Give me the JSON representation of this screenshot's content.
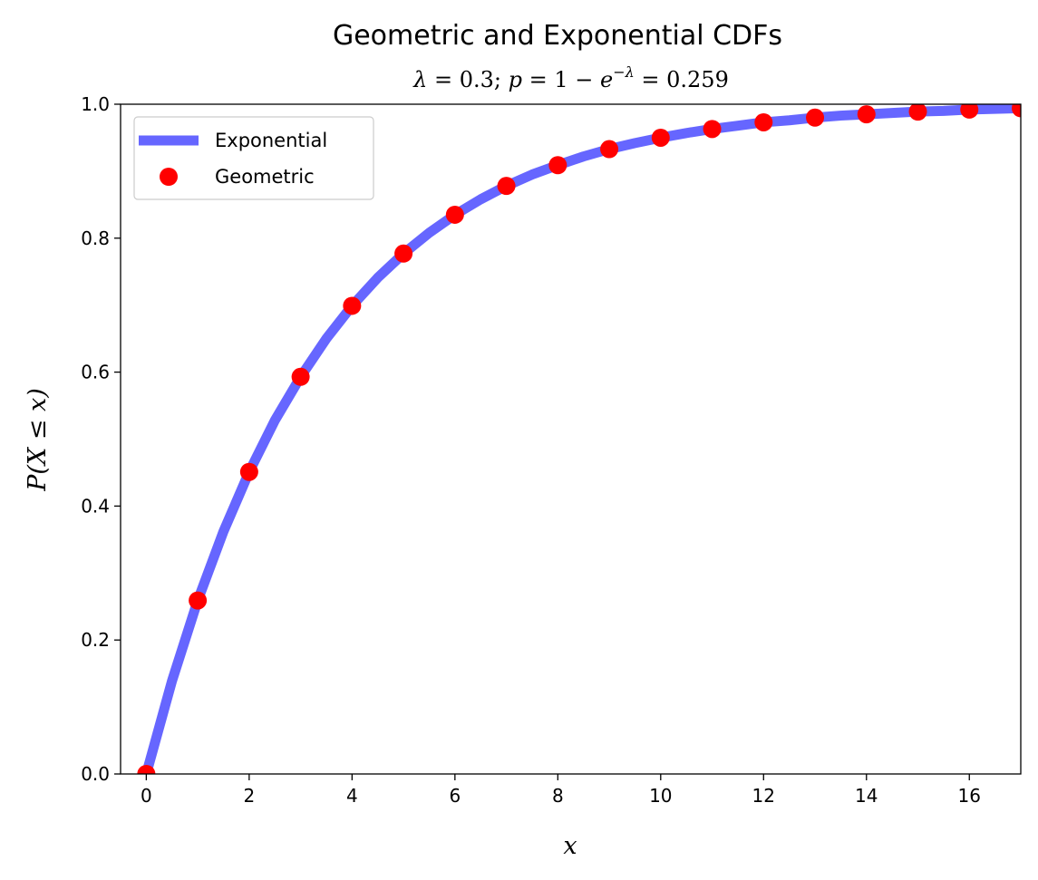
{
  "chart_data": {
    "type": "line",
    "title": "Geometric and Exponential CDFs",
    "subtitle": "λ = 0.3;   p = 1 − e⁻λ =  0.259",
    "xlabel": "x",
    "ylabel": "P(X ≤ x)",
    "xlim": [
      -0.5,
      17
    ],
    "ylim": [
      0,
      1
    ],
    "xticks": [
      "0",
      "2",
      "4",
      "6",
      "8",
      "10",
      "12",
      "14",
      "16"
    ],
    "yticks": [
      "0.0",
      "0.2",
      "0.4",
      "0.6",
      "0.8",
      "1.0"
    ],
    "grid": false,
    "legend_position": "top-left",
    "series": [
      {
        "name": "Exponential",
        "style": "line",
        "color": "#6666ff",
        "lambda": 0.3,
        "x": [
          0,
          0.5,
          1,
          1.5,
          2,
          2.5,
          3,
          3.5,
          4,
          4.5,
          5,
          5.5,
          6,
          6.5,
          7,
          7.5,
          8,
          8.5,
          9,
          9.5,
          10,
          10.5,
          11,
          11.5,
          12,
          12.5,
          13,
          13.5,
          14,
          14.5,
          15,
          15.5,
          16,
          16.5,
          17
        ],
        "y": [
          0.0,
          0.139,
          0.259,
          0.362,
          0.451,
          0.528,
          0.593,
          0.65,
          0.699,
          0.741,
          0.777,
          0.808,
          0.835,
          0.858,
          0.878,
          0.895,
          0.909,
          0.922,
          0.933,
          0.942,
          0.95,
          0.957,
          0.963,
          0.968,
          0.973,
          0.976,
          0.98,
          0.983,
          0.985,
          0.987,
          0.989,
          0.99,
          0.992,
          0.993,
          0.994
        ]
      },
      {
        "name": "Geometric",
        "style": "markers",
        "color": "#ff0000",
        "x": [
          0,
          1,
          2,
          3,
          4,
          5,
          6,
          7,
          8,
          9,
          10,
          11,
          12,
          13,
          14,
          15,
          16,
          17
        ],
        "y": [
          0.0,
          0.259,
          0.451,
          0.593,
          0.699,
          0.777,
          0.835,
          0.878,
          0.909,
          0.933,
          0.95,
          0.963,
          0.973,
          0.98,
          0.985,
          0.989,
          0.992,
          0.994
        ]
      }
    ]
  }
}
